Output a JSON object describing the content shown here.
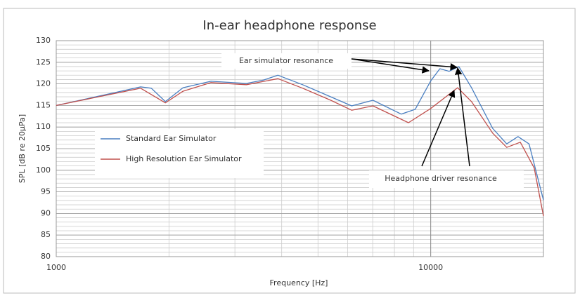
{
  "chart_data": {
    "type": "line",
    "title": "In-ear headphone response",
    "x_label": "Frequency [Hz]",
    "y_label": "SPL [dB re 20µPa]",
    "x_scale": "log",
    "xlim": [
      1000,
      20000
    ],
    "xticks": [
      1000,
      10000
    ],
    "ylim": [
      80,
      130
    ],
    "yticks": [
      80,
      85,
      90,
      95,
      100,
      105,
      110,
      115,
      120,
      125,
      130
    ],
    "grid": true,
    "legend": "center-left",
    "annotations": [
      "Ear simulator resonance",
      "Headphone driver resonance"
    ],
    "series": [
      {
        "name": "Standard Ear Simulator",
        "color": "#4a7fc1",
        "x": [
          1000,
          1354,
          1680,
          1794,
          1956,
          2180,
          2590,
          3220,
          3580,
          3910,
          4550,
          5410,
          6150,
          7010,
          8340,
          9090,
          10000,
          10580,
          11200,
          11890,
          12850,
          14630,
          15960,
          17100,
          18300,
          20000
        ],
        "values": [
          115,
          117.5,
          119.3,
          119,
          115.9,
          119.1,
          120.6,
          120.1,
          120.9,
          122,
          119.8,
          117,
          114.9,
          116.2,
          113,
          114.1,
          120.7,
          123.5,
          122.9,
          124,
          119.1,
          109.7,
          106.1,
          107.8,
          106.1,
          93.1
        ]
      },
      {
        "name": "High Resolution Ear Simulator",
        "color": "#c0504d",
        "x": [
          1000,
          1680,
          1956,
          2180,
          2590,
          3220,
          3910,
          4550,
          5410,
          6150,
          7010,
          8720,
          10000,
          11800,
          12850,
          14630,
          15960,
          17350,
          18900,
          20000
        ],
        "values": [
          115,
          119,
          115.6,
          118.3,
          120.3,
          119.8,
          121.2,
          119,
          116.2,
          113.9,
          114.9,
          111,
          114.3,
          119.1,
          115.9,
          108.6,
          105.3,
          106.5,
          100.5,
          89.4
        ]
      }
    ]
  }
}
